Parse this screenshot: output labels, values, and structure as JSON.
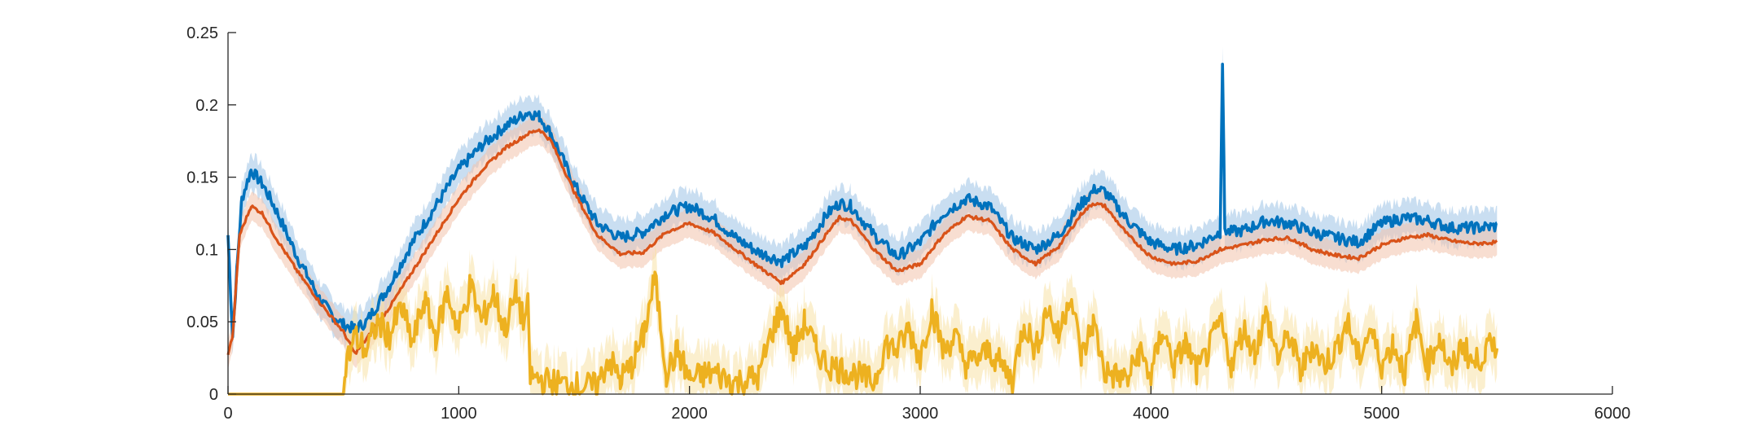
{
  "chart_data": {
    "type": "line",
    "title": "",
    "xlabel": "",
    "ylabel": "",
    "xlim": [
      0,
      6000
    ],
    "ylim": [
      0,
      0.25
    ],
    "x_ticks": [
      {
        "value": 0,
        "label": "0"
      },
      {
        "value": 1000,
        "label": "1000"
      },
      {
        "value": 2000,
        "label": "2000"
      },
      {
        "value": 3000,
        "label": "3000"
      },
      {
        "value": 4000,
        "label": "4000"
      },
      {
        "value": 5000,
        "label": "5000"
      },
      {
        "value": 6000,
        "label": "6000"
      }
    ],
    "y_ticks": [
      {
        "value": 0,
        "label": "0"
      },
      {
        "value": 0.05,
        "label": "0.05"
      },
      {
        "value": 0.1,
        "label": "0.1"
      },
      {
        "value": 0.15,
        "label": "0.15"
      },
      {
        "value": 0.2,
        "label": "0.2"
      },
      {
        "value": 0.25,
        "label": "0.25"
      }
    ],
    "grid": false,
    "legend": "none",
    "series": [
      {
        "color": "#0072BD",
        "band_color": "#9CC3E6",
        "x": [
          0,
          20,
          40,
          60,
          100,
          150,
          200,
          300,
          400,
          450,
          500,
          550,
          600,
          700,
          800,
          900,
          1000,
          1100,
          1200,
          1300,
          1350,
          1400,
          1500,
          1600,
          1700,
          1800,
          1900,
          2000,
          2100,
          2200,
          2300,
          2400,
          2500,
          2600,
          2650,
          2700,
          2800,
          2900,
          3000,
          3100,
          3200,
          3300,
          3400,
          3500,
          3600,
          3700,
          3760,
          3800,
          3900,
          4000,
          4100,
          4200,
          4300,
          4310,
          4320,
          4330,
          4400,
          4500,
          4600,
          4700,
          4800,
          4900,
          5000,
          5100,
          5200,
          5300,
          5400,
          5500
        ],
        "y": [
          0.11,
          0.04,
          0.09,
          0.135,
          0.155,
          0.145,
          0.13,
          0.095,
          0.065,
          0.055,
          0.048,
          0.045,
          0.05,
          0.075,
          0.105,
          0.13,
          0.155,
          0.172,
          0.185,
          0.195,
          0.192,
          0.18,
          0.145,
          0.118,
          0.108,
          0.112,
          0.125,
          0.13,
          0.122,
          0.108,
          0.098,
          0.092,
          0.102,
          0.125,
          0.132,
          0.13,
          0.11,
          0.095,
          0.105,
          0.125,
          0.135,
          0.13,
          0.108,
          0.1,
          0.11,
          0.132,
          0.142,
          0.14,
          0.12,
          0.105,
          0.1,
          0.103,
          0.112,
          0.23,
          0.115,
          0.112,
          0.113,
          0.12,
          0.118,
          0.112,
          0.108,
          0.105,
          0.118,
          0.122,
          0.12,
          0.115,
          0.115,
          0.116
        ]
      },
      {
        "color": "#D95319",
        "band_color": "#F2C2AC",
        "x": [
          0,
          20,
          50,
          100,
          150,
          200,
          300,
          400,
          500,
          550,
          600,
          700,
          800,
          900,
          1000,
          1100,
          1200,
          1300,
          1350,
          1400,
          1500,
          1600,
          1700,
          1800,
          1900,
          2000,
          2100,
          2200,
          2300,
          2400,
          2500,
          2600,
          2650,
          2700,
          2800,
          2900,
          3000,
          3100,
          3200,
          3300,
          3400,
          3500,
          3600,
          3700,
          3750,
          3800,
          3900,
          4000,
          4100,
          4200,
          4300,
          4400,
          4500,
          4600,
          4700,
          4800,
          4900,
          5000,
          5100,
          5200,
          5300,
          5400,
          5500
        ],
        "y": [
          0.028,
          0.04,
          0.11,
          0.13,
          0.125,
          0.11,
          0.085,
          0.063,
          0.043,
          0.028,
          0.038,
          0.06,
          0.085,
          0.11,
          0.135,
          0.155,
          0.17,
          0.18,
          0.183,
          0.175,
          0.14,
          0.11,
          0.097,
          0.098,
          0.112,
          0.118,
          0.112,
          0.1,
          0.088,
          0.077,
          0.09,
          0.112,
          0.122,
          0.12,
          0.1,
          0.085,
          0.09,
          0.11,
          0.123,
          0.12,
          0.1,
          0.09,
          0.102,
          0.125,
          0.132,
          0.13,
          0.11,
          0.095,
          0.09,
          0.092,
          0.1,
          0.103,
          0.107,
          0.108,
          0.1,
          0.096,
          0.094,
          0.103,
          0.108,
          0.11,
          0.106,
          0.104,
          0.105
        ]
      },
      {
        "color": "#EDB120",
        "band_color": "#F8E1A6",
        "x": [
          0,
          100,
          200,
          300,
          400,
          500,
          510,
          550,
          600,
          650,
          700,
          750,
          800,
          850,
          900,
          950,
          1000,
          1050,
          1100,
          1150,
          1200,
          1250,
          1280,
          1300,
          1310,
          1400,
          1500,
          1600,
          1650,
          1700,
          1750,
          1800,
          1850,
          1900,
          1950,
          2000,
          2100,
          2200,
          2300,
          2350,
          2400,
          2450,
          2500,
          2550,
          2600,
          2700,
          2800,
          2850,
          2900,
          2950,
          3000,
          3050,
          3100,
          3150,
          3200,
          3300,
          3400,
          3450,
          3500,
          3550,
          3600,
          3650,
          3700,
          3750,
          3800,
          3900,
          3950,
          4000,
          4050,
          4100,
          4150,
          4200,
          4250,
          4300,
          4350,
          4400,
          4450,
          4500,
          4550,
          4600,
          4650,
          4700,
          4750,
          4800,
          4850,
          4900,
          4950,
          5000,
          5050,
          5100,
          5150,
          5200,
          5250,
          5300,
          5350,
          5400,
          5450,
          5500
        ],
        "y": [
          0.0,
          0.0,
          0.0,
          0.0,
          0.0,
          0.0,
          0.02,
          0.04,
          0.03,
          0.05,
          0.04,
          0.06,
          0.035,
          0.065,
          0.04,
          0.07,
          0.045,
          0.075,
          0.05,
          0.07,
          0.045,
          0.07,
          0.05,
          0.06,
          0.012,
          0.008,
          0.006,
          0.005,
          0.025,
          0.01,
          0.02,
          0.04,
          0.08,
          0.015,
          0.03,
          0.01,
          0.015,
          0.008,
          0.012,
          0.04,
          0.06,
          0.03,
          0.05,
          0.03,
          0.02,
          0.015,
          0.008,
          0.035,
          0.03,
          0.045,
          0.025,
          0.06,
          0.03,
          0.04,
          0.02,
          0.03,
          0.01,
          0.05,
          0.03,
          0.06,
          0.04,
          0.07,
          0.025,
          0.05,
          0.015,
          0.01,
          0.03,
          0.012,
          0.045,
          0.02,
          0.035,
          0.015,
          0.03,
          0.05,
          0.02,
          0.045,
          0.03,
          0.055,
          0.025,
          0.04,
          0.015,
          0.035,
          0.02,
          0.03,
          0.05,
          0.025,
          0.045,
          0.02,
          0.035,
          0.015,
          0.05,
          0.02,
          0.04,
          0.015,
          0.035,
          0.02,
          0.03,
          0.035
        ]
      }
    ]
  }
}
